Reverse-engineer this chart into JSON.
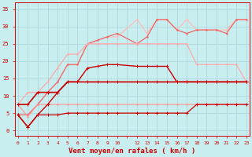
{
  "bg_color": "#c8eef0",
  "grid_color": "#b0d8dc",
  "xlabel": "Vent moyen/en rafales ( km/h )",
  "xlabel_color": "#cc0000",
  "xlabel_fontsize": 6.5,
  "xtick_labels": [
    "0",
    "1",
    "2",
    "3",
    "4",
    "5",
    "6",
    "7",
    "8",
    "9",
    "10",
    "",
    "12",
    "13",
    "14",
    "15",
    "16",
    "17",
    "18",
    "19",
    "20",
    "21",
    "22",
    "23"
  ],
  "ytick_vals": [
    0,
    5,
    10,
    15,
    20,
    25,
    30,
    35
  ],
  "xlim": [
    -0.3,
    23.3
  ],
  "ylim": [
    -1.5,
    37
  ],
  "series": [
    {
      "x": [
        0,
        1,
        2,
        3,
        4,
        5,
        6,
        7,
        8,
        9,
        10,
        12,
        13,
        14,
        15,
        16,
        17,
        18,
        19,
        20,
        21,
        22,
        23
      ],
      "y": [
        4.5,
        1,
        4.5,
        4.5,
        4.5,
        5,
        5,
        5,
        5,
        5,
        5,
        5,
        5,
        5,
        5,
        5,
        5,
        7.5,
        7.5,
        7.5,
        7.5,
        7.5,
        7.5
      ],
      "color": "#cc0000",
      "lw": 0.9,
      "marker": "+",
      "ms": 2.5,
      "zorder": 5
    },
    {
      "x": [
        0,
        1,
        2,
        3,
        4,
        5,
        6,
        7,
        8,
        9,
        10,
        12,
        13,
        14,
        15,
        16,
        17,
        18,
        19,
        20,
        21,
        22,
        23
      ],
      "y": [
        7.5,
        4,
        7.5,
        7.5,
        7.5,
        7.5,
        7.5,
        7.5,
        7.5,
        7.5,
        7.5,
        7.5,
        7.5,
        7.5,
        7.5,
        7.5,
        7.5,
        7.5,
        7.5,
        7.5,
        7.5,
        7.5,
        7.5
      ],
      "color": "#ff9999",
      "lw": 0.9,
      "marker": ".",
      "ms": 2,
      "zorder": 3
    },
    {
      "x": [
        0,
        1,
        2,
        3,
        4,
        5,
        6,
        7,
        8,
        9,
        10,
        12,
        13,
        14,
        15,
        16,
        17,
        18,
        19,
        20,
        21,
        22,
        23
      ],
      "y": [
        7.5,
        7.5,
        11,
        11,
        11,
        14,
        14,
        14,
        14,
        14,
        14,
        14,
        14,
        14,
        14,
        14,
        14,
        14,
        14,
        14,
        14,
        14,
        14
      ],
      "color": "#cc0000",
      "lw": 1.2,
      "marker": "+",
      "ms": 2.5,
      "zorder": 5
    },
    {
      "x": [
        0,
        1,
        2,
        3,
        4,
        5,
        6,
        7,
        8,
        9,
        10,
        12,
        13,
        14,
        15,
        16,
        17,
        18,
        19,
        20,
        21,
        22,
        23
      ],
      "y": [
        7.5,
        11,
        11,
        14,
        18,
        22,
        22,
        25,
        25,
        25,
        25,
        25,
        25,
        25,
        25,
        25,
        25,
        19,
        19,
        19,
        19,
        19,
        14
      ],
      "color": "#ffaaaa",
      "lw": 0.9,
      "marker": ".",
      "ms": 2,
      "zorder": 3
    },
    {
      "x": [
        0,
        1,
        2,
        3,
        4,
        5,
        6,
        7,
        8,
        9,
        10,
        12,
        13,
        14,
        15,
        16,
        17,
        18,
        19,
        20,
        21,
        22,
        23
      ],
      "y": [
        4.5,
        1,
        4.5,
        7.5,
        11,
        14,
        14,
        18,
        18.5,
        19,
        19,
        18.5,
        18.5,
        18.5,
        18.5,
        14,
        14,
        14,
        14,
        14,
        14,
        14,
        14
      ],
      "color": "#cc0000",
      "lw": 1.0,
      "marker": "+",
      "ms": 2.5,
      "zorder": 4
    },
    {
      "x": [
        0,
        1,
        2,
        3,
        4,
        5,
        6,
        7,
        8,
        9,
        10,
        12,
        13,
        14,
        15,
        16,
        17,
        18,
        19,
        20,
        21,
        22,
        23
      ],
      "y": [
        4.5,
        4.5,
        7.5,
        11,
        14,
        19,
        19,
        25,
        26,
        27,
        27,
        32,
        28,
        32,
        32,
        29,
        32,
        29,
        29,
        29,
        29,
        32,
        32
      ],
      "color": "#ffbbbb",
      "lw": 0.9,
      "marker": ".",
      "ms": 2,
      "zorder": 2
    },
    {
      "x": [
        0,
        1,
        2,
        3,
        4,
        5,
        6,
        7,
        8,
        9,
        10,
        12,
        13,
        14,
        15,
        16,
        17,
        18,
        19,
        20,
        21,
        22,
        23
      ],
      "y": [
        4.5,
        4.5,
        7.5,
        11,
        14,
        19,
        19,
        25,
        26,
        27,
        28,
        25,
        27,
        32,
        32,
        29,
        28,
        29,
        29,
        29,
        28,
        32,
        32
      ],
      "color": "#ee6666",
      "lw": 0.9,
      "marker": ".",
      "ms": 2,
      "zorder": 2
    }
  ]
}
